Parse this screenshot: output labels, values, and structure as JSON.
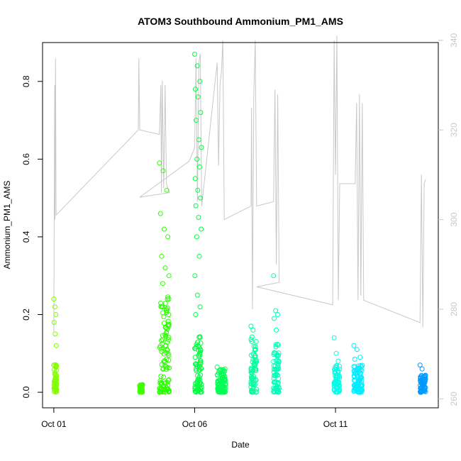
{
  "chart_data": {
    "type": "scatter",
    "title": "ATOM3 Southbound Ammonium_PM1_AMS",
    "xlabel": "Date",
    "ylabel": "Ammonium_PM1_AMS",
    "x_ticks": [
      {
        "x": 1.0,
        "label": "Oct 01"
      },
      {
        "x": 6.0,
        "label": "Oct 06"
      },
      {
        "x": 11.0,
        "label": "Oct 11"
      }
    ],
    "xlim": [
      0.6,
      14.65
    ],
    "ylim": [
      -0.04,
      0.9
    ],
    "y_ticks": [
      0.0,
      0.2,
      0.4,
      0.6,
      0.8
    ],
    "y_tick_labels": [
      "0.0",
      "0.2",
      "0.4",
      "0.6",
      "0.8"
    ],
    "secondary_axis": {
      "side": "right",
      "color": "#c8c8c8",
      "lim": [
        258,
        339.5
      ],
      "ticks": [
        260,
        280,
        300,
        320,
        340
      ],
      "tick_labels": [
        "260",
        "280",
        "300",
        "320",
        "340"
      ]
    },
    "series": [
      {
        "color": "#80ff00",
        "x_range": [
          1.0,
          1.1
        ],
        "base": [
          0.0,
          0.08
        ],
        "peaks": [
          0.24,
          0.22,
          0.2,
          0.18,
          0.15,
          0.12
        ]
      },
      {
        "color": "#40ff00",
        "x_range": [
          4.05,
          4.15
        ],
        "base": [
          0.0,
          0.02
        ],
        "peaks": [
          0.015
        ]
      },
      {
        "color": "#2aff00",
        "x_range": [
          4.75,
          5.1
        ],
        "base": [
          0.0,
          0.25
        ],
        "peaks": [
          0.59,
          0.57,
          0.52,
          0.46,
          0.42,
          0.4,
          0.35,
          0.32,
          0.3,
          0.28
        ]
      },
      {
        "color": "#00ff40",
        "x_range": [
          6.0,
          6.25
        ],
        "base": [
          0.0,
          0.15
        ],
        "peaks": [
          0.87,
          0.84,
          0.8,
          0.78,
          0.76,
          0.72,
          0.7,
          0.65,
          0.63,
          0.6,
          0.58,
          0.55,
          0.52,
          0.5,
          0.48,
          0.45,
          0.42,
          0.4,
          0.35,
          0.3,
          0.25,
          0.22,
          0.2
        ]
      },
      {
        "color": "#00ff55",
        "x_range": [
          6.8,
          7.1
        ],
        "base": [
          0.0,
          0.06
        ],
        "peaks": [
          0.065
        ]
      },
      {
        "color": "#00ff9c",
        "x_range": [
          8.0,
          8.2
        ],
        "base": [
          0.0,
          0.15
        ],
        "peaks": [
          0.17,
          0.16
        ]
      },
      {
        "color": "#00ffb8",
        "x_range": [
          8.8,
          9.0
        ],
        "base": [
          0.0,
          0.13
        ],
        "peaks": [
          0.3,
          0.21,
          0.2,
          0.19,
          0.16
        ]
      },
      {
        "color": "#00ffe8",
        "x_range": [
          10.95,
          11.15
        ],
        "base": [
          0.0,
          0.07
        ],
        "peaks": [
          0.14,
          0.1,
          0.08
        ]
      },
      {
        "color": "#00ecff",
        "x_range": [
          11.65,
          11.95
        ],
        "base": [
          0.0,
          0.07
        ],
        "peaks": [
          0.12,
          0.11,
          0.09,
          0.085
        ]
      },
      {
        "color": "#0099ff",
        "x_range": [
          14.0,
          14.2
        ],
        "base": [
          0.0,
          0.045
        ],
        "peaks": [
          0.07,
          0.06
        ]
      }
    ],
    "secondary_line": {
      "color": "#c8c8c8",
      "points": [
        [
          1.0,
          275
        ],
        [
          1.03,
          330
        ],
        [
          1.04,
          300
        ],
        [
          1.06,
          336
        ],
        [
          1.08,
          301
        ],
        [
          4.0,
          320
        ],
        [
          4.02,
          336
        ],
        [
          4.05,
          320
        ],
        [
          4.75,
          319
        ],
        [
          4.8,
          330
        ],
        [
          4.82,
          306
        ],
        [
          4.85,
          331
        ],
        [
          4.9,
          307
        ],
        [
          4.95,
          330
        ],
        [
          5.0,
          308
        ],
        [
          5.1,
          306
        ],
        [
          4.05,
          305
        ],
        [
          5.8,
          313
        ],
        [
          6.0,
          316
        ],
        [
          6.05,
          336
        ],
        [
          6.1,
          304
        ],
        [
          6.15,
          335
        ],
        [
          6.2,
          337
        ],
        [
          6.25,
          303
        ],
        [
          6.8,
          335
        ],
        [
          6.85,
          312
        ],
        [
          6.9,
          330
        ],
        [
          6.95,
          333
        ],
        [
          7.0,
          340
        ],
        [
          7.05,
          300
        ],
        [
          8.0,
          303
        ],
        [
          8.02,
          325
        ],
        [
          8.05,
          280
        ],
        [
          8.1,
          328
        ],
        [
          8.15,
          340
        ],
        [
          8.2,
          303
        ],
        [
          8.8,
          304
        ],
        [
          8.85,
          329
        ],
        [
          8.9,
          290
        ],
        [
          8.95,
          328
        ],
        [
          9.0,
          286
        ],
        [
          8.2,
          285
        ],
        [
          10.9,
          281
        ],
        [
          10.95,
          340
        ],
        [
          11.0,
          310
        ],
        [
          11.05,
          341
        ],
        [
          11.1,
          282
        ],
        [
          11.15,
          308
        ],
        [
          11.7,
          308
        ],
        [
          11.75,
          326
        ],
        [
          11.8,
          282
        ],
        [
          11.85,
          328
        ],
        [
          11.9,
          283
        ],
        [
          11.95,
          326
        ],
        [
          12.0,
          282
        ],
        [
          14.0,
          277
        ],
        [
          14.05,
          310
        ],
        [
          14.1,
          276
        ],
        [
          14.15,
          308
        ],
        [
          14.2,
          309
        ]
      ]
    }
  }
}
